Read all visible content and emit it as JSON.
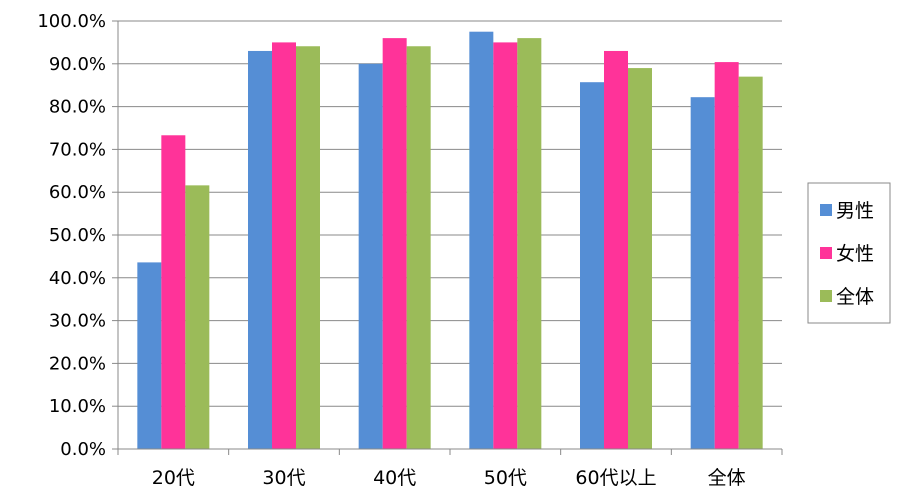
{
  "chart_data": {
    "type": "bar",
    "categories": [
      "20代",
      "30代",
      "40代",
      "50代",
      "60代以上",
      "全体"
    ],
    "series": [
      {
        "name": "男性",
        "values": [
          43.6,
          93.0,
          90.0,
          97.5,
          85.7,
          82.2
        ],
        "color": "#558ed5"
      },
      {
        "name": "女性",
        "values": [
          73.3,
          95.0,
          96.0,
          95.0,
          93.0,
          90.4
        ],
        "color": "#ff3399"
      },
      {
        "name": "全体",
        "values": [
          61.6,
          94.1,
          94.1,
          96.0,
          89.0,
          87.0
        ],
        "color": "#9bbb59"
      }
    ],
    "ylim": [
      0,
      100
    ],
    "yticks": [
      "0.0%",
      "10.0%",
      "20.0%",
      "30.0%",
      "40.0%",
      "50.0%",
      "60.0%",
      "70.0%",
      "80.0%",
      "90.0%",
      "100.0%"
    ],
    "grid": true,
    "legend_position": "right",
    "title": "",
    "xlabel": "",
    "ylabel": ""
  }
}
